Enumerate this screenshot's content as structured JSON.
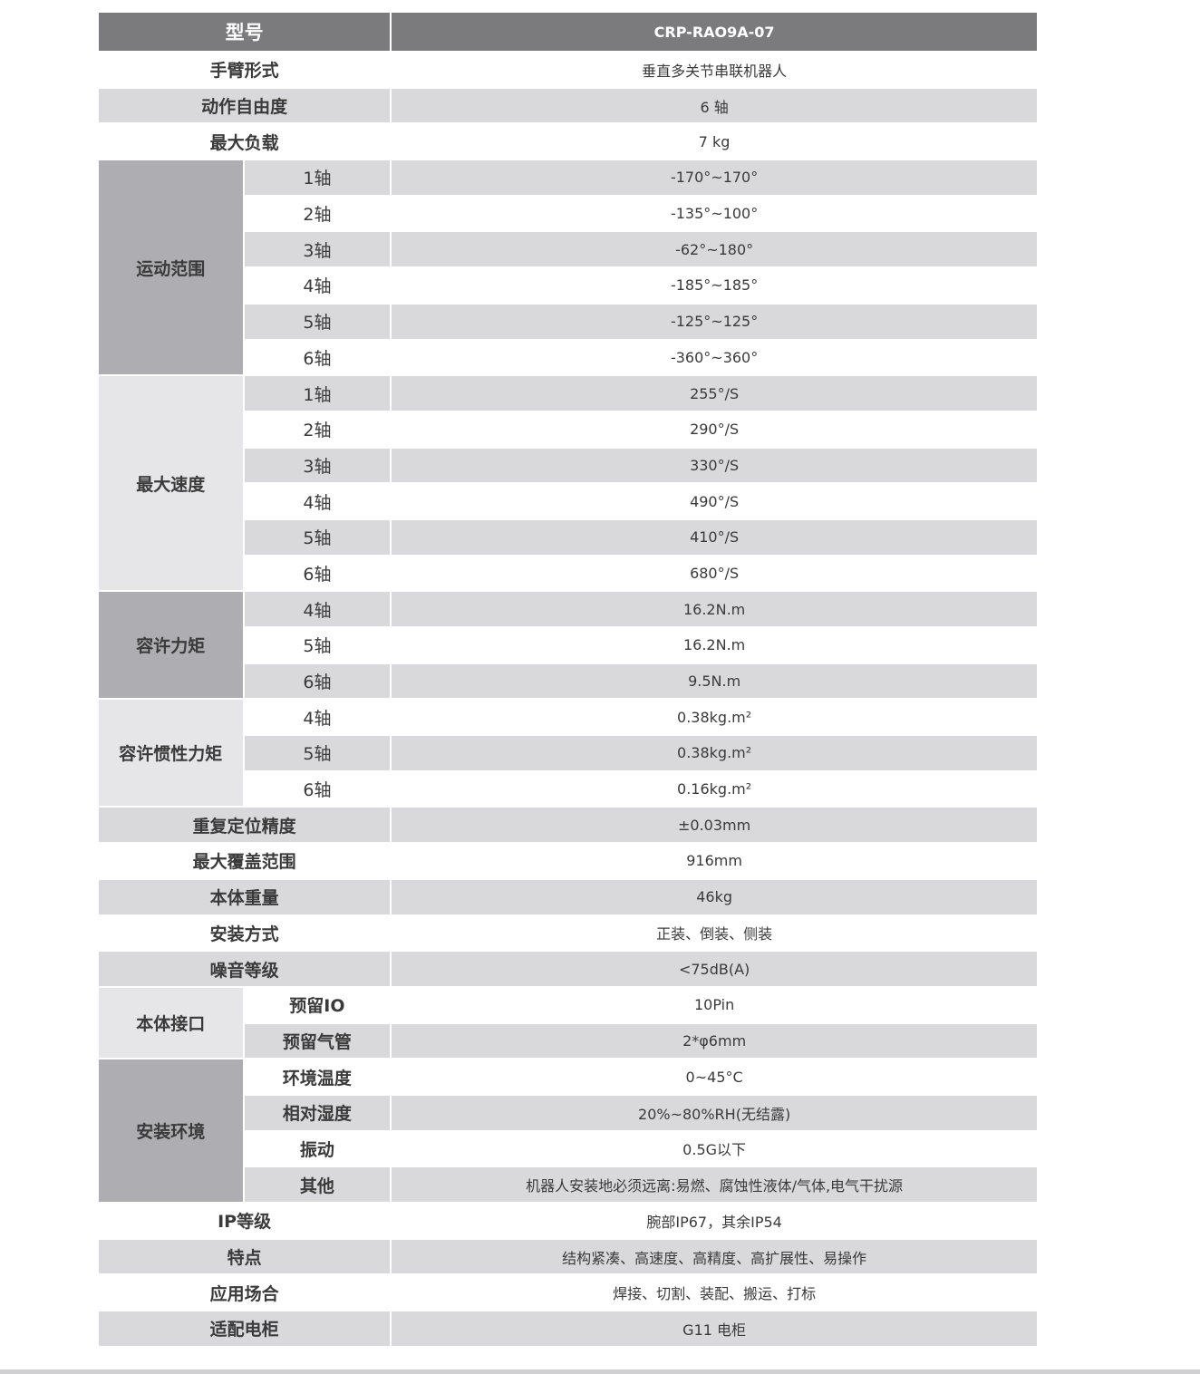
{
  "header": {
    "label": "型号",
    "value": "CRP-RAO9A-07"
  },
  "colors": {
    "header": "#7b7b7d",
    "stripe": "#d9d9db",
    "group_dark": "#aeaeb2",
    "group_light": "#e6e6e8"
  },
  "rows": [
    {
      "label": "手臂形式",
      "value": "垂直多关节串联机器人"
    },
    {
      "label": "动作自由度",
      "value": "6 轴"
    },
    {
      "label": "最大负载",
      "value": "7 kg"
    },
    {
      "group": "运动范围",
      "tone": "dark",
      "items": [
        {
          "sub": "1轴",
          "value": "-170°~170°"
        },
        {
          "sub": "2轴",
          "value": "-135°~100°"
        },
        {
          "sub": "3轴",
          "value": "-62°~180°"
        },
        {
          "sub": "4轴",
          "value": "-185°~185°"
        },
        {
          "sub": "5轴",
          "value": "-125°~125°"
        },
        {
          "sub": "6轴",
          "value": "-360°~360°"
        }
      ]
    },
    {
      "group": "最大速度",
      "tone": "light",
      "items": [
        {
          "sub": "1轴",
          "value": "255°/S"
        },
        {
          "sub": "2轴",
          "value": "290°/S"
        },
        {
          "sub": "3轴",
          "value": "330°/S"
        },
        {
          "sub": "4轴",
          "value": "490°/S"
        },
        {
          "sub": "5轴",
          "value": "410°/S"
        },
        {
          "sub": "6轴",
          "value": "680°/S"
        }
      ]
    },
    {
      "group": "容许力矩",
      "tone": "dark",
      "items": [
        {
          "sub": "4轴",
          "value": "16.2N.m"
        },
        {
          "sub": "5轴",
          "value": "16.2N.m"
        },
        {
          "sub": "6轴",
          "value": "9.5N.m"
        }
      ]
    },
    {
      "group": "容许惯性力矩",
      "tone": "light",
      "items": [
        {
          "sub": "4轴",
          "value": "0.38kg.m²"
        },
        {
          "sub": "5轴",
          "value": "0.38kg.m²"
        },
        {
          "sub": "6轴",
          "value": "0.16kg.m²"
        }
      ]
    },
    {
      "label": "重复定位精度",
      "value": "±0.03mm"
    },
    {
      "label": "最大覆盖范围",
      "value": "916mm"
    },
    {
      "label": "本体重量",
      "value": "46kg"
    },
    {
      "label": "安装方式",
      "value": "正装、倒装、侧装"
    },
    {
      "label": "噪音等级",
      "value": "<75dB(A)"
    },
    {
      "group": "本体接口",
      "tone": "light",
      "bold_sub": true,
      "items": [
        {
          "sub": "预留IO",
          "value": "10Pin"
        },
        {
          "sub": "预留气管",
          "value": "2*φ6mm"
        }
      ]
    },
    {
      "group": "安装环境",
      "tone": "dark",
      "bold_sub": true,
      "items": [
        {
          "sub": "环境温度",
          "value": "0~45°C"
        },
        {
          "sub": "相对湿度",
          "value": "20%~80%RH(无结露)"
        },
        {
          "sub": "振动",
          "value": "0.5G以下"
        },
        {
          "sub": "其他",
          "value": "机器人安装地必须远离:易燃、腐蚀性液体/气体,电气干扰源"
        }
      ]
    },
    {
      "label": "IP等级",
      "value": "腕部IP67，其余IP54"
    },
    {
      "label": "特点",
      "value": "结构紧凑、高速度、高精度、高扩展性、易操作"
    },
    {
      "label": "应用场合",
      "value": "焊接、切割、装配、搬运、打标"
    },
    {
      "label": "适配电柜",
      "value": "G11  电柜"
    }
  ]
}
